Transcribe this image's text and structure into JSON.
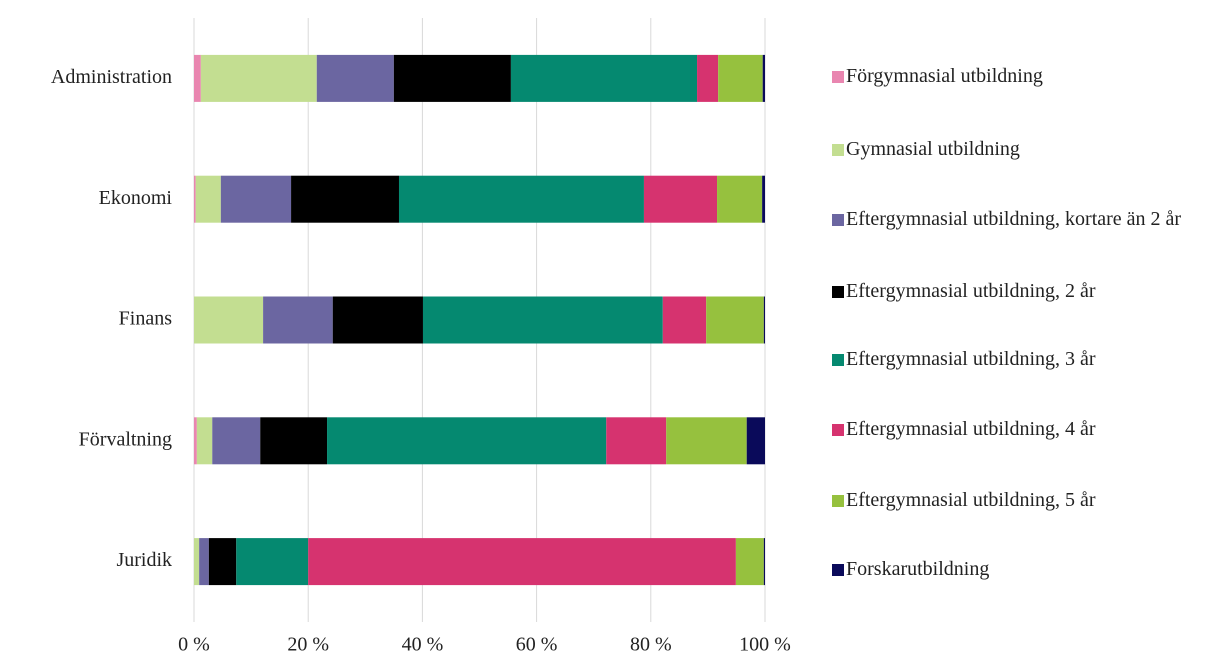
{
  "chart_data": {
    "type": "stacked-barh",
    "categories": [
      "Administration",
      "Ekonomi",
      "Finans",
      "Förvaltning",
      "Juridik"
    ],
    "series": [
      {
        "name": "Förgymnasial utbildning",
        "color": "#e986b0",
        "values": [
          1.2,
          0.3,
          0,
          0.5,
          0
        ]
      },
      {
        "name": "Gymnasial utbildning",
        "color": "#c3de91",
        "values": [
          20.3,
          4.4,
          12.1,
          2.7,
          0.9
        ]
      },
      {
        "name": "Eftergymnasial utbildning, kortare än 2 år",
        "color": "#6b66a1",
        "values": [
          13.5,
          12.3,
          12.2,
          8.4,
          1.7
        ]
      },
      {
        "name": "Eftergymnasial utbildning, 2 år",
        "color": "#000000",
        "values": [
          20.5,
          18.9,
          15.8,
          11.7,
          4.8
        ]
      },
      {
        "name": "Eftergymnasial utbildning, 3 år",
        "color": "#058970",
        "values": [
          32.6,
          42.9,
          42.0,
          48.9,
          12.6
        ]
      },
      {
        "name": "Eftergymnasial utbildning, 4 år",
        "color": "#d6336f",
        "values": [
          3.7,
          12.8,
          7.6,
          10.5,
          74.9
        ]
      },
      {
        "name": "Eftergymnasial utbildning, 5 år",
        "color": "#96c13e",
        "values": [
          7.8,
          7.9,
          10.1,
          14.1,
          4.9
        ]
      },
      {
        "name": "Forskarutbildning",
        "color": "#0a0a5a",
        "values": [
          0.4,
          0.5,
          0.2,
          3.2,
          0.2
        ]
      }
    ],
    "xlim": [
      0,
      100
    ],
    "xticks": [
      {
        "value": 0,
        "label": "0 %"
      },
      {
        "value": 20,
        "label": "20 %"
      },
      {
        "value": 40,
        "label": "40 %"
      },
      {
        "value": 60,
        "label": "60 %"
      },
      {
        "value": 80,
        "label": "80 %"
      },
      {
        "value": 100,
        "label": "100 %"
      }
    ],
    "grid": true,
    "legend": "right"
  }
}
